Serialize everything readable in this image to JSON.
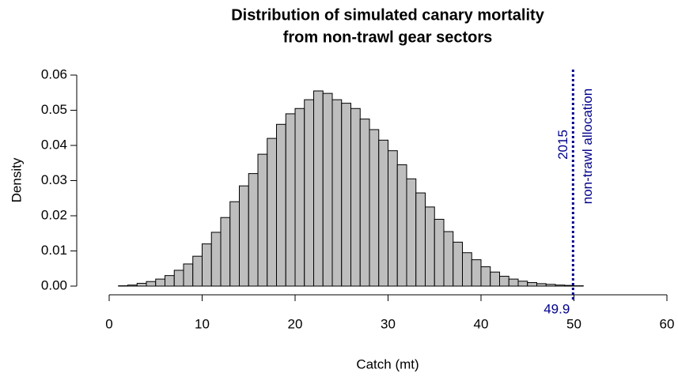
{
  "chart_data": {
    "type": "histogram",
    "title": [
      "Distribution of simulated canary mortality",
      "from non-trawl gear sectors"
    ],
    "x_label": "Catch (mt)",
    "y_label": "Density",
    "bins": [
      0,
      1,
      2,
      3,
      4,
      5,
      6,
      7,
      8,
      9,
      10,
      11,
      12,
      13,
      14,
      15,
      16,
      17,
      18,
      19,
      20,
      21,
      22,
      23,
      24,
      25,
      26,
      27,
      28,
      29,
      30,
      31,
      32,
      33,
      34,
      35,
      36,
      37,
      38,
      39,
      40,
      41,
      42,
      43,
      44,
      45,
      46,
      47,
      48,
      49,
      50,
      51,
      52,
      53,
      54,
      55,
      56,
      57,
      58,
      59,
      60
    ],
    "values": [
      0,
      0.0001,
      0.0003,
      0.0008,
      0.0013,
      0.002,
      0.003,
      0.0045,
      0.0063,
      0.0085,
      0.012,
      0.0153,
      0.0195,
      0.024,
      0.0285,
      0.032,
      0.0375,
      0.042,
      0.046,
      0.049,
      0.0505,
      0.053,
      0.0555,
      0.0548,
      0.053,
      0.052,
      0.0505,
      0.0475,
      0.0445,
      0.0415,
      0.0385,
      0.0345,
      0.0305,
      0.0265,
      0.0225,
      0.019,
      0.0155,
      0.0125,
      0.0095,
      0.0075,
      0.0055,
      0.004,
      0.0028,
      0.002,
      0.0014,
      0.001,
      0.0007,
      0.0005,
      0.0003,
      0.0002,
      0.0001,
      0,
      0,
      0,
      0,
      0,
      0,
      0,
      0,
      0
    ],
    "color": "#bebebe",
    "xlim": [
      0,
      60
    ],
    "xticks": [
      0,
      10,
      20,
      30,
      40,
      50,
      60
    ],
    "ylim": [
      0,
      0.06
    ],
    "yticks": [
      {
        "value": 0,
        "label": "0.00"
      },
      0.01,
      0.02,
      0.03,
      0.04,
      0.05,
      0.06
    ],
    "reference_line": {
      "x": 49.9,
      "color": "#00008b",
      "text": [
        "2015",
        "non-trawl allocation"
      ]
    }
  }
}
